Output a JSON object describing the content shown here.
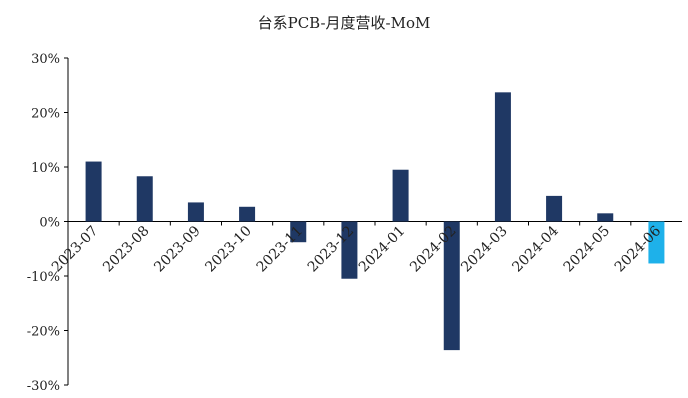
{
  "chart_data": {
    "type": "bar",
    "title": "台系PCB-月度营收-MoM",
    "xlabel": "",
    "ylabel": "",
    "ylim": [
      -30,
      30
    ],
    "yticks": [
      "30%",
      "20%",
      "10%",
      "0%",
      "-10%",
      "-20%",
      "-30%"
    ],
    "ytick_values": [
      30,
      20,
      10,
      0,
      -10,
      -20,
      -30
    ],
    "categories": [
      "2023-07",
      "2023-08",
      "2023-09",
      "2023-10",
      "2023-11",
      "2023-12",
      "2024-01",
      "2024-02",
      "2024-03",
      "2024-04",
      "2024-05",
      "2024-06"
    ],
    "values": [
      11.0,
      8.3,
      3.5,
      2.7,
      -3.8,
      -10.5,
      9.5,
      -23.6,
      23.7,
      4.7,
      1.5,
      -7.7
    ],
    "bar_color": "#1f3864",
    "highlight_color": "#1eb1ea",
    "highlight_index": 11,
    "grid": false,
    "legend": "none"
  }
}
